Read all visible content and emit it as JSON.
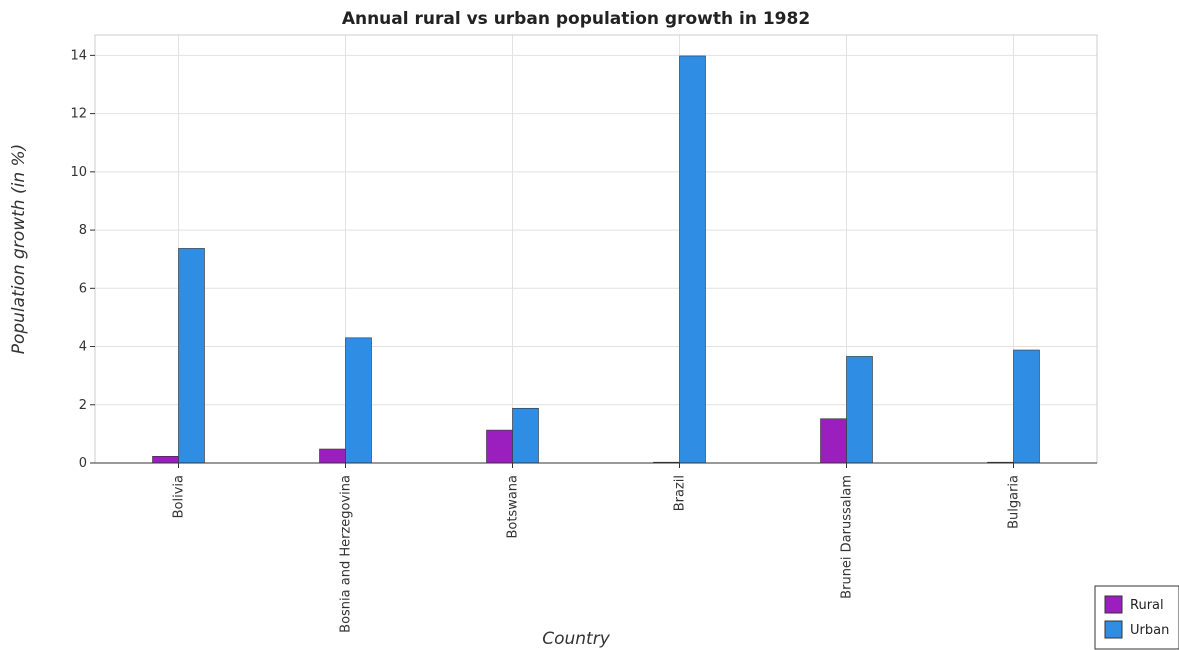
{
  "chart_data": {
    "type": "bar",
    "title": "Annual rural vs urban population growth in 1982",
    "xlabel": "Country",
    "ylabel": "Population growth (in %)",
    "categories": [
      "Bolivia",
      "Bosnia and Herzegovina",
      "Botswana",
      "Brazil",
      "Brunei Darussalam",
      "Bulgaria"
    ],
    "series": [
      {
        "name": "Rural",
        "color": "#9b1fbf",
        "values": [
          0.23,
          0.48,
          1.13,
          0,
          1.52,
          0
        ]
      },
      {
        "name": "Urban",
        "color": "#2f8de4",
        "values": [
          7.37,
          4.3,
          1.88,
          13.98,
          3.66,
          3.88
        ]
      }
    ],
    "ylim": [
      0,
      14.7
    ],
    "yticks": [
      0,
      2,
      4,
      6,
      8,
      10,
      12,
      14
    ],
    "grid": true,
    "legend_position": "bottom-right"
  }
}
